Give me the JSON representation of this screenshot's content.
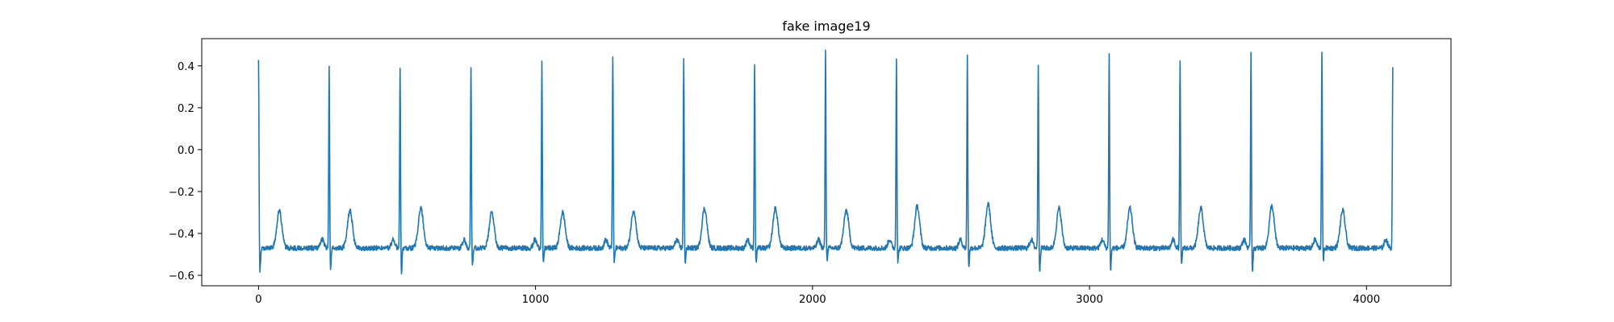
{
  "chart_data": {
    "type": "line",
    "title": "fake image19",
    "xlabel": "",
    "ylabel": "",
    "xlim": [
      -205,
      4305
    ],
    "ylim": [
      -0.65,
      0.53
    ],
    "xticks": [
      0,
      1000,
      2000,
      3000,
      4000
    ],
    "xtick_labels": [
      "0",
      "1000",
      "2000",
      "3000",
      "4000"
    ],
    "yticks": [
      -0.6,
      -0.4,
      -0.2,
      0.0,
      0.2,
      0.4
    ],
    "ytick_labels": [
      "−0.6",
      "−0.4",
      "−0.2",
      "0.0",
      "0.2",
      "0.4"
    ],
    "grid": false,
    "legend": "none",
    "line_color": "#1f77b4",
    "series": [
      {
        "n_points": 4096,
        "baseline": -0.47,
        "noise_amplitude": 0.012,
        "beats": [
          {
            "r_x": 0,
            "r_peak": 0.43,
            "s_min": -0.58,
            "t_peak": -0.29
          },
          {
            "r_x": 255,
            "r_peak": 0.4,
            "s_min": -0.57,
            "t_peak": -0.29
          },
          {
            "r_x": 511,
            "r_peak": 0.39,
            "s_min": -0.59,
            "t_peak": -0.28
          },
          {
            "r_x": 767,
            "r_peak": 0.4,
            "s_min": -0.55,
            "t_peak": -0.3
          },
          {
            "r_x": 1023,
            "r_peak": 0.42,
            "s_min": -0.55,
            "t_peak": -0.3
          },
          {
            "r_x": 1279,
            "r_peak": 0.44,
            "s_min": -0.54,
            "t_peak": -0.29
          },
          {
            "r_x": 1535,
            "r_peak": 0.44,
            "s_min": -0.54,
            "t_peak": -0.28
          },
          {
            "r_x": 1791,
            "r_peak": 0.42,
            "s_min": -0.54,
            "t_peak": -0.28
          },
          {
            "r_x": 2047,
            "r_peak": 0.47,
            "s_min": -0.53,
            "t_peak": -0.29
          },
          {
            "r_x": 2303,
            "r_peak": 0.45,
            "s_min": -0.54,
            "t_peak": -0.27
          },
          {
            "r_x": 2559,
            "r_peak": 0.45,
            "s_min": -0.56,
            "t_peak": -0.26
          },
          {
            "r_x": 2815,
            "r_peak": 0.41,
            "s_min": -0.58,
            "t_peak": -0.28
          },
          {
            "r_x": 3071,
            "r_peak": 0.46,
            "s_min": -0.58,
            "t_peak": -0.28
          },
          {
            "r_x": 3327,
            "r_peak": 0.44,
            "s_min": -0.56,
            "t_peak": -0.28
          },
          {
            "r_x": 3583,
            "r_peak": 0.47,
            "s_min": -0.58,
            "t_peak": -0.27
          },
          {
            "r_x": 3839,
            "r_peak": 0.48,
            "s_min": -0.53,
            "t_peak": -0.29
          },
          {
            "r_x": 4095,
            "r_peak": 0.39,
            "s_min": -0.56,
            "t_peak": -0.29
          }
        ]
      }
    ]
  }
}
